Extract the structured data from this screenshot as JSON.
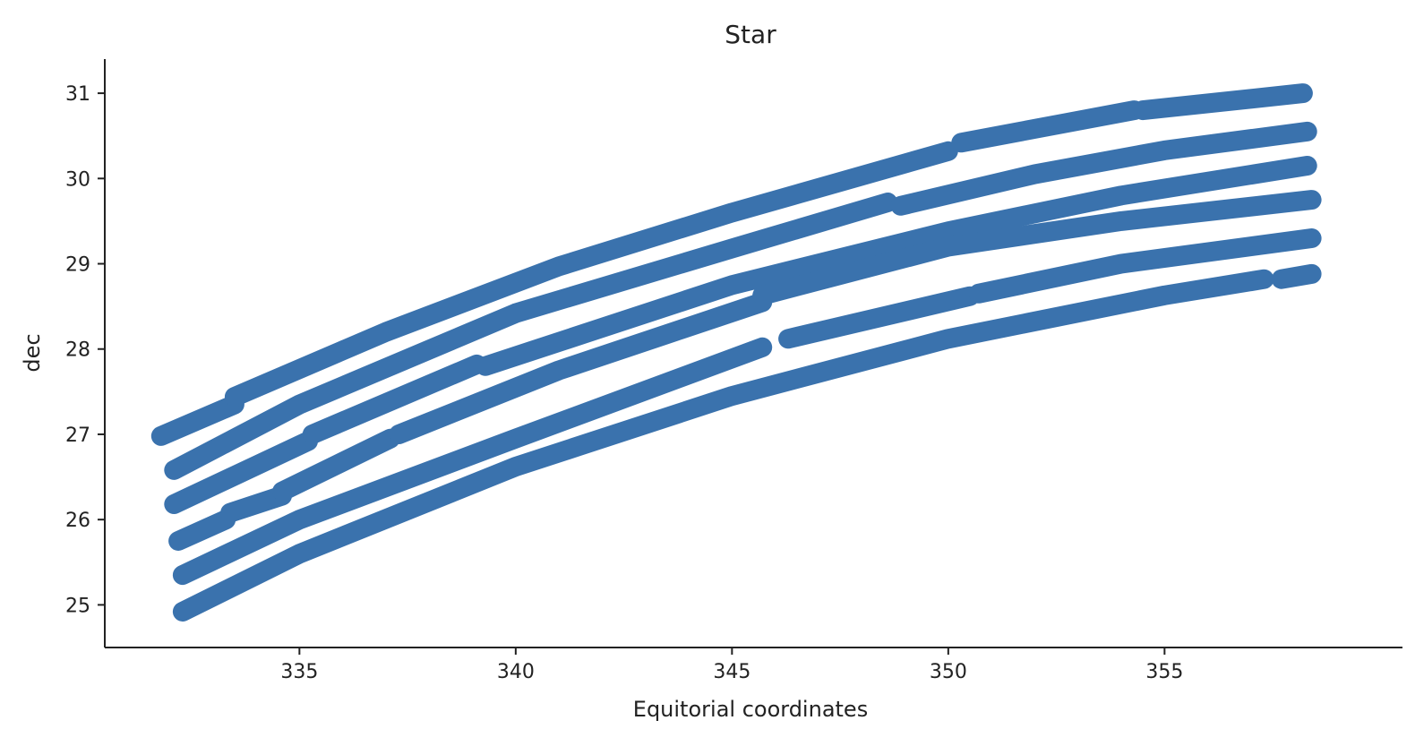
{
  "chart_data": {
    "type": "scatter",
    "title": "Star",
    "xlabel": "Equitorial coordinates",
    "ylabel": "dec",
    "xlim": [
      330.5,
      360.5
    ],
    "ylim": [
      24.5,
      31.4
    ],
    "xticks": [
      335,
      340,
      345,
      350,
      355
    ],
    "yticks": [
      25,
      26,
      27,
      28,
      29,
      30,
      31
    ],
    "grid": false,
    "color": "#3a72ad",
    "series": [
      {
        "segments": [
          [
            [
              331.8,
              26.98
            ],
            [
              333.5,
              27.35
            ]
          ],
          [
            [
              333.5,
              27.44
            ],
            [
              337,
              28.2
            ],
            [
              341,
              28.97
            ],
            [
              345,
              29.6
            ],
            [
              350,
              30.32
            ]
          ],
          [
            [
              350.3,
              30.42
            ],
            [
              354.3,
              30.8
            ]
          ],
          [
            [
              354.5,
              30.8
            ],
            [
              358.2,
              31.0
            ]
          ]
        ]
      },
      {
        "segments": [
          [
            [
              332.1,
              26.58
            ],
            [
              335,
              27.35
            ],
            [
              340,
              28.42
            ],
            [
              345,
              29.18
            ],
            [
              348.6,
              29.72
            ]
          ],
          [
            [
              348.9,
              29.68
            ],
            [
              352,
              30.05
            ],
            [
              355,
              30.33
            ],
            [
              358.3,
              30.55
            ]
          ]
        ]
      },
      {
        "segments": [
          [
            [
              332.1,
              26.18
            ],
            [
              335.2,
              26.92
            ]
          ],
          [
            [
              335.3,
              27.0
            ],
            [
              339.1,
              27.82
            ]
          ],
          [
            [
              339.3,
              27.8
            ],
            [
              345,
              28.75
            ],
            [
              350,
              29.38
            ],
            [
              354,
              29.8
            ],
            [
              358.3,
              30.15
            ]
          ]
        ]
      },
      {
        "segments": [
          [
            [
              332.2,
              25.75
            ],
            [
              333.3,
              26.0
            ]
          ],
          [
            [
              333.4,
              26.08
            ],
            [
              334.6,
              26.28
            ]
          ],
          [
            [
              334.6,
              26.33
            ],
            [
              337.1,
              26.95
            ]
          ],
          [
            [
              337.3,
              27.0
            ],
            [
              341,
              27.75
            ],
            [
              345.7,
              28.55
            ]
          ],
          [
            [
              345.7,
              28.63
            ],
            [
              350,
              29.2
            ],
            [
              354,
              29.5
            ],
            [
              358.4,
              29.75
            ]
          ]
        ]
      },
      {
        "segments": [
          [
            [
              332.3,
              25.35
            ],
            [
              335,
              26.0
            ],
            [
              340,
              26.95
            ],
            [
              345.7,
              28.02
            ]
          ],
          [
            [
              346.3,
              28.12
            ],
            [
              350.5,
              28.62
            ]
          ],
          [
            [
              350.7,
              28.65
            ],
            [
              354,
              29.0
            ],
            [
              358.4,
              29.3
            ]
          ]
        ]
      },
      {
        "segments": [
          [
            [
              332.3,
              24.92
            ],
            [
              335,
              25.6
            ],
            [
              340,
              26.62
            ],
            [
              345,
              27.45
            ],
            [
              350,
              28.12
            ],
            [
              355,
              28.63
            ],
            [
              357.3,
              28.82
            ]
          ],
          [
            [
              357.7,
              28.82
            ],
            [
              358.4,
              28.88
            ]
          ]
        ]
      }
    ]
  }
}
